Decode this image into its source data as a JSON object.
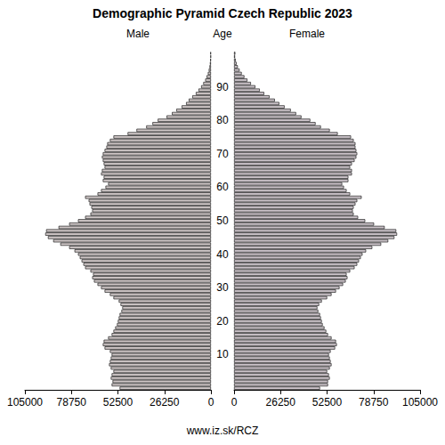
{
  "chart_data": {
    "type": "bar",
    "orientation": "horizontal",
    "title": "Demographic Pyramid Czech Republic 2023",
    "y_label": "Age",
    "caption": "www.iz.sk/RCZ",
    "categories": [
      null,
      null,
      null,
      null,
      null,
      null,
      null,
      null,
      null,
      null,
      "10",
      null,
      null,
      null,
      null,
      null,
      null,
      null,
      null,
      null,
      "20",
      null,
      null,
      null,
      null,
      null,
      null,
      null,
      null,
      null,
      "30",
      null,
      null,
      null,
      null,
      null,
      null,
      null,
      null,
      null,
      "40",
      null,
      null,
      null,
      null,
      null,
      null,
      null,
      null,
      null,
      "50",
      null,
      null,
      null,
      null,
      null,
      null,
      null,
      null,
      null,
      "60",
      null,
      null,
      null,
      null,
      null,
      null,
      null,
      null,
      null,
      "70",
      null,
      null,
      null,
      null,
      null,
      null,
      null,
      null,
      null,
      "80",
      null,
      null,
      null,
      null,
      null,
      null,
      null,
      null,
      null,
      "90",
      null,
      null,
      null,
      null,
      null,
      null,
      null,
      null,
      null,
      null
    ],
    "series": [
      {
        "name": "Male",
        "color": "#cfc7c7",
        "values": [
          51500,
          56000,
          55500,
          56500,
          56000,
          55000,
          56500,
          57500,
          57000,
          56500,
          56000,
          57000,
          60000,
          61000,
          60500,
          58000,
          56000,
          55000,
          54000,
          53000,
          52500,
          52000,
          51500,
          50500,
          50000,
          51000,
          52000,
          55000,
          57000,
          60000,
          62000,
          64000,
          66000,
          67000,
          66500,
          68000,
          71000,
          72000,
          73000,
          74000,
          75000,
          77000,
          80000,
          85000,
          89000,
          92000,
          93500,
          93000,
          86000,
          80000,
          75000,
          71000,
          68000,
          67000,
          67500,
          68500,
          69000,
          71000,
          64000,
          62000,
          59500,
          58000,
          61000,
          60500,
          62000,
          61500,
          60000,
          60500,
          61000,
          61500,
          61000,
          60000,
          59000,
          58500,
          57000,
          55000,
          47000,
          42000,
          36500,
          33000,
          30000,
          25000,
          22000,
          19500,
          16500,
          14000,
          12500,
          10500,
          8500,
          7000,
          5500,
          4300,
          3200,
          2400,
          1700,
          1200,
          800,
          550,
          350,
          220,
          300
        ]
      },
      {
        "name": "Female",
        "color": "#cbc3c9",
        "values": [
          48500,
          53000,
          53000,
          54000,
          53500,
          52500,
          54000,
          55000,
          54500,
          54000,
          53500,
          54500,
          57000,
          58000,
          57500,
          55000,
          53000,
          52000,
          51000,
          50000,
          49500,
          49000,
          48500,
          47500,
          47000,
          48000,
          49500,
          52500,
          55000,
          57500,
          59500,
          61500,
          63000,
          64000,
          63500,
          65500,
          68000,
          69500,
          70500,
          71500,
          72500,
          74500,
          78000,
          83000,
          87000,
          90500,
          92000,
          91500,
          85000,
          79000,
          74000,
          70000,
          67500,
          67000,
          67500,
          68500,
          69500,
          72000,
          65500,
          63500,
          62000,
          61000,
          64500,
          64500,
          66500,
          66500,
          65500,
          66500,
          68000,
          69000,
          69500,
          69000,
          68500,
          68500,
          67500,
          66000,
          58500,
          54000,
          49000,
          46000,
          43000,
          38000,
          35000,
          32000,
          28500,
          25500,
          23000,
          20000,
          17000,
          14500,
          12000,
          9500,
          7500,
          5800,
          4300,
          3100,
          2100,
          1400,
          900,
          550,
          700
        ]
      }
    ],
    "xlim": [
      0,
      105000
    ],
    "xticks": [
      0,
      26250,
      52500,
      78750,
      105000
    ],
    "grid": false
  }
}
